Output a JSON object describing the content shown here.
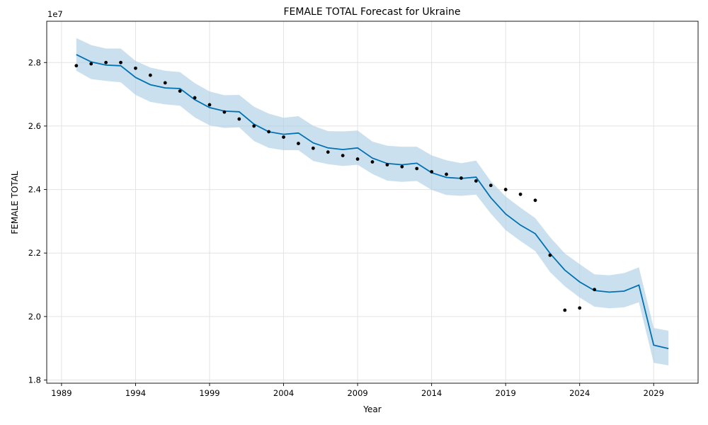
{
  "chart_data": {
    "type": "line",
    "title": "FEMALE TOTAL Forecast for Ukraine",
    "xlabel": "Year",
    "ylabel": "FEMALE TOTAL",
    "y_scale_label": "1e7",
    "xlim": [
      1988.0,
      2032.0
    ],
    "ylim": [
      17900000,
      29300000
    ],
    "x_ticks": [
      1989,
      1994,
      1999,
      2004,
      2009,
      2014,
      2019,
      2024,
      2029
    ],
    "x_tick_labels": [
      "1989",
      "1994",
      "1999",
      "2004",
      "2009",
      "2014",
      "2019",
      "2024",
      "2029"
    ],
    "y_ticks": [
      18000000,
      20000000,
      22000000,
      24000000,
      26000000,
      28000000
    ],
    "y_tick_labels": [
      "1.8",
      "2.0",
      "2.2",
      "2.4",
      "2.6",
      "2.8"
    ],
    "grid": true,
    "colors": {
      "forecast": "#0072b2",
      "interval": "#a9cce3",
      "observed": "#000000"
    },
    "observed": {
      "x": [
        1990,
        1991,
        1992,
        1993,
        1994,
        1995,
        1996,
        1997,
        1998,
        1999,
        2000,
        2001,
        2002,
        2003,
        2004,
        2005,
        2006,
        2007,
        2008,
        2009,
        2010,
        2011,
        2012,
        2013,
        2014,
        2015,
        2016,
        2017,
        2018,
        2019,
        2020,
        2021,
        2022,
        2023,
        2024,
        2025
      ],
      "y": [
        27900000,
        27960000,
        28000000,
        28000000,
        27820000,
        27600000,
        27360000,
        27100000,
        26890000,
        26670000,
        26440000,
        26220000,
        26000000,
        25820000,
        25650000,
        25450000,
        25300000,
        25180000,
        25070000,
        24960000,
        24870000,
        24780000,
        24720000,
        24660000,
        24560000,
        24480000,
        24360000,
        24270000,
        24130000,
        24000000,
        23850000,
        23660000,
        21930000,
        20200000,
        20270000,
        20850000
      ]
    },
    "forecast": {
      "x": [
        1990,
        1991,
        1992,
        1993,
        1994,
        1995,
        1996,
        1997,
        1998,
        1999,
        2000,
        2001,
        2002,
        2003,
        2004,
        2005,
        2006,
        2007,
        2008,
        2009,
        2010,
        2011,
        2012,
        2013,
        2014,
        2015,
        2016,
        2017,
        2018,
        2019,
        2020,
        2021,
        2022,
        2023,
        2024,
        2025,
        2026,
        2027,
        2028,
        2029,
        2030
      ],
      "yhat": [
        28250000,
        28020000,
        27920000,
        27900000,
        27530000,
        27300000,
        27200000,
        27180000,
        26830000,
        26580000,
        26470000,
        26450000,
        26060000,
        25820000,
        25740000,
        25780000,
        25470000,
        25310000,
        25260000,
        25310000,
        24990000,
        24820000,
        24780000,
        24830000,
        24530000,
        24380000,
        24350000,
        24390000,
        23740000,
        23230000,
        22880000,
        22610000,
        21990000,
        21460000,
        21090000,
        20820000,
        20770000,
        20800000,
        20990000,
        19100000,
        18990000
      ],
      "lower": [
        27740000,
        27480000,
        27420000,
        27380000,
        26980000,
        26760000,
        26680000,
        26640000,
        26270000,
        26020000,
        25940000,
        25960000,
        25530000,
        25310000,
        25240000,
        25240000,
        24900000,
        24800000,
        24740000,
        24780000,
        24490000,
        24280000,
        24240000,
        24270000,
        23990000,
        23830000,
        23800000,
        23840000,
        23240000,
        22720000,
        22380000,
        22060000,
        21400000,
        20950000,
        20600000,
        20310000,
        20260000,
        20290000,
        20450000,
        18540000,
        18460000
      ],
      "upper": [
        28770000,
        28550000,
        28440000,
        28440000,
        28050000,
        27840000,
        27740000,
        27700000,
        27350000,
        27090000,
        26970000,
        26980000,
        26610000,
        26390000,
        26260000,
        26310000,
        26010000,
        25840000,
        25830000,
        25860000,
        25510000,
        25380000,
        25350000,
        25350000,
        25080000,
        24920000,
        24830000,
        24910000,
        24260000,
        23780000,
        23430000,
        23100000,
        22500000,
        21990000,
        21650000,
        21330000,
        21300000,
        21370000,
        21550000,
        19640000,
        19550000
      ]
    }
  }
}
